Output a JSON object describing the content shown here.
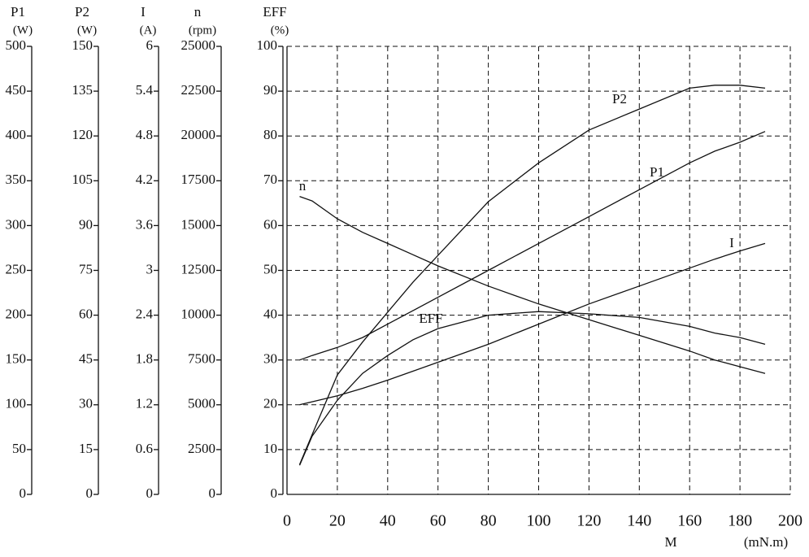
{
  "chart_data": {
    "type": "line",
    "x_label": "M",
    "x_unit": "(mN.m)",
    "xlim": [
      0,
      200
    ],
    "xticks": [
      0,
      20,
      40,
      60,
      80,
      100,
      120,
      140,
      160,
      180,
      200
    ],
    "grid": true,
    "axes": [
      {
        "name": "P1",
        "unit": "(W)",
        "ylim": [
          0,
          500
        ],
        "yticks": [
          0,
          50,
          100,
          150,
          200,
          250,
          300,
          350,
          400,
          450,
          500
        ]
      },
      {
        "name": "P2",
        "unit": "(W)",
        "ylim": [
          0,
          150
        ],
        "yticks": [
          0,
          15,
          30,
          45,
          60,
          75,
          90,
          105,
          120,
          135,
          150
        ]
      },
      {
        "name": "I",
        "unit": "(A)",
        "ylim": [
          0,
          6
        ],
        "yticks": [
          0,
          0.6,
          1.2,
          1.8,
          2.4,
          3,
          3.6,
          4.2,
          4.8,
          5.4,
          6
        ]
      },
      {
        "name": "n",
        "unit": "(rpm)",
        "ylim": [
          0,
          25000
        ],
        "yticks": [
          0,
          2500,
          5000,
          7500,
          10000,
          12500,
          15000,
          17500,
          20000,
          22500,
          25000
        ]
      },
      {
        "name": "EFF",
        "unit": "(%)",
        "ylim": [
          0,
          100
        ],
        "yticks": [
          0,
          10,
          20,
          30,
          40,
          50,
          60,
          70,
          80,
          90,
          100
        ]
      }
    ],
    "x": [
      5,
      10,
      20,
      30,
      40,
      50,
      60,
      80,
      100,
      120,
      140,
      160,
      170,
      180,
      190
    ],
    "series": [
      {
        "name": "P2",
        "axis": 1,
        "color": "#111111",
        "values": [
          10,
          20,
          40,
          51,
          61,
          71,
          80,
          98,
          111,
          122,
          129,
          136,
          137,
          137,
          136
        ]
      },
      {
        "name": "P1",
        "axis": 0,
        "color": "#111111",
        "values": [
          150,
          155,
          164,
          175,
          190,
          205,
          220,
          250,
          280,
          310,
          340,
          370,
          383,
          393,
          405
        ]
      },
      {
        "name": "I",
        "axis": 2,
        "color": "#111111",
        "values": [
          1.2,
          1.24,
          1.32,
          1.42,
          1.53,
          1.65,
          1.77,
          2.01,
          2.28,
          2.55,
          2.79,
          3.03,
          3.15,
          3.26,
          3.36
        ]
      },
      {
        "name": "n",
        "axis": 3,
        "color": "#111111",
        "values": [
          16625,
          16375,
          15375,
          14625,
          14000,
          13375,
          12750,
          11625,
          10625,
          9750,
          8875,
          8000,
          7500,
          7125,
          6750
        ]
      },
      {
        "name": "EFF",
        "axis": 4,
        "color": "#111111",
        "values": [
          6.5,
          13,
          21,
          27,
          31,
          34.5,
          37,
          40,
          40.8,
          40.3,
          39.5,
          37.5,
          36,
          35,
          33.5
        ]
      }
    ]
  }
}
